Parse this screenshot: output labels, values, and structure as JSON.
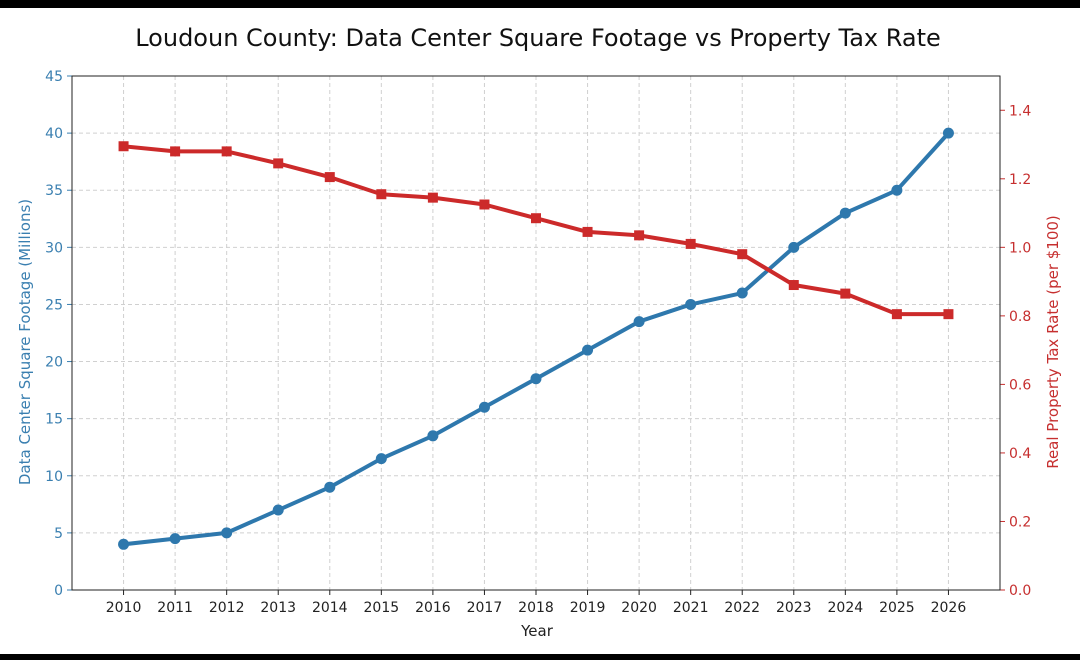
{
  "chart_data": {
    "type": "line",
    "title": "Loudoun County: Data Center Square Footage vs Property Tax Rate",
    "xlabel": "Year",
    "ylabel_left": "Data Center Square Footage (Millions)",
    "ylabel_right": "Real Property Tax Rate (per $100)",
    "x": [
      2010,
      2011,
      2012,
      2013,
      2014,
      2015,
      2016,
      2017,
      2018,
      2019,
      2020,
      2021,
      2022,
      2023,
      2024,
      2025,
      2026
    ],
    "ylim_left": [
      0,
      45
    ],
    "yticks_left": [
      0,
      5,
      10,
      15,
      20,
      25,
      30,
      35,
      40,
      45
    ],
    "ylim_right": [
      0,
      1.5
    ],
    "yticks_right": [
      "0.0",
      "0.2",
      "0.4",
      "0.6",
      "0.8",
      "1.0",
      "1.2",
      "1.4"
    ],
    "grid": true,
    "colors": {
      "left": "#2e78ad",
      "right": "#cc2a2a"
    },
    "series": [
      {
        "axis": "left",
        "values": [
          4.0,
          4.5,
          5.0,
          7.0,
          9.0,
          11.5,
          13.5,
          16.0,
          18.5,
          21.0,
          23.5,
          25.0,
          26.0,
          30.0,
          33.0,
          35.0,
          40.0
        ]
      },
      {
        "axis": "right",
        "values": [
          1.295,
          1.28,
          1.28,
          1.245,
          1.205,
          1.155,
          1.145,
          1.125,
          1.085,
          1.045,
          1.035,
          1.01,
          0.98,
          0.89,
          0.865,
          0.805,
          0.805
        ]
      }
    ]
  }
}
